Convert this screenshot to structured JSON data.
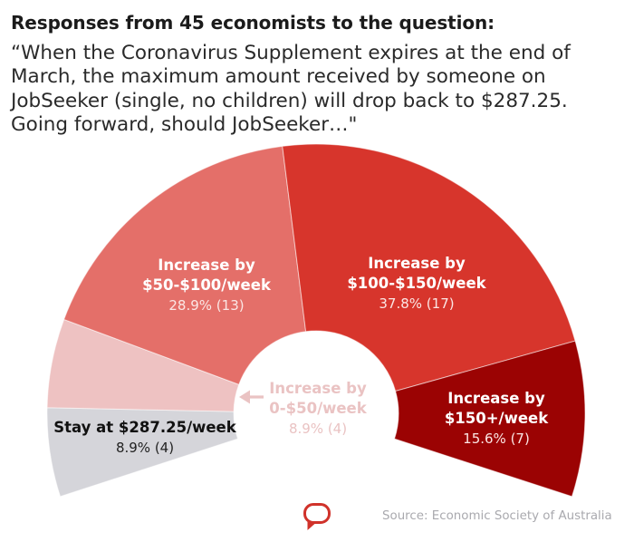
{
  "header": {
    "title": "Responses from 45 economists to the question:",
    "question_lines": [
      "“When the Coronavirus Supplement expires at the end of",
      "March, the maximum amount received by someone on",
      "JobSeeker (single, no children) will drop back to $287.25.",
      "Going forward, should JobSeeker…\""
    ]
  },
  "chart_data": {
    "type": "pie",
    "subtype": "semi-donut gauge",
    "title": "Responses from 45 economists to the question:",
    "subtitle": "“When the Coronavirus Supplement expires at the end of March, the maximum amount received by someone on JobSeeker (single, no children) will drop back to $287.25. Going forward, should JobSeeker…\"",
    "total_respondents": 45,
    "arc_span_degrees": 216,
    "legend": "none (direct labels)",
    "categories": [
      "Stay at $287.25/week",
      "Increase by 0-$50/week",
      "Increase by $50-$100/week",
      "Increase by $100-$150/week",
      "Increase by $150+/week"
    ],
    "values": [
      8.9,
      8.9,
      28.9,
      37.8,
      15.6
    ],
    "counts": [
      4,
      4,
      13,
      17,
      7
    ],
    "unit": "% of economists (count)",
    "segments": [
      {
        "name": "Stay at $287.25/week",
        "label_lines": [
          "Stay at $287.25/week"
        ],
        "percent": 8.9,
        "count": 4,
        "value_text": "8.9% (4)",
        "color": "#d5d5da"
      },
      {
        "name": "Increase by 0-$50/week",
        "label_lines": [
          "Increase by",
          "0-$50/week"
        ],
        "percent": 8.9,
        "count": 4,
        "value_text": "8.9% (4)",
        "color": "#eec2c2"
      },
      {
        "name": "Increase by $50-$100/week",
        "label_lines": [
          "Increase by",
          "$50-$100/week"
        ],
        "percent": 28.9,
        "count": 13,
        "value_text": "28.9% (13)",
        "color": "#e46f69"
      },
      {
        "name": "Increase by $100-$150/week",
        "label_lines": [
          "Increase by",
          "$100-$150/week"
        ],
        "percent": 37.8,
        "count": 17,
        "value_text": "37.8% (17)",
        "color": "#d7352c"
      },
      {
        "name": "Increase by $150+/week",
        "label_lines": [
          "Increase by",
          "$150+/week"
        ],
        "percent": 15.6,
        "count": 7,
        "value_text": "15.6% (7)",
        "color": "#9b0303"
      }
    ],
    "annotation_color": "#eac3c3"
  },
  "source": "Source: Economic Society of Australia",
  "logo": {
    "icon": "speech-bubble-icon",
    "color": "#d0322a"
  }
}
